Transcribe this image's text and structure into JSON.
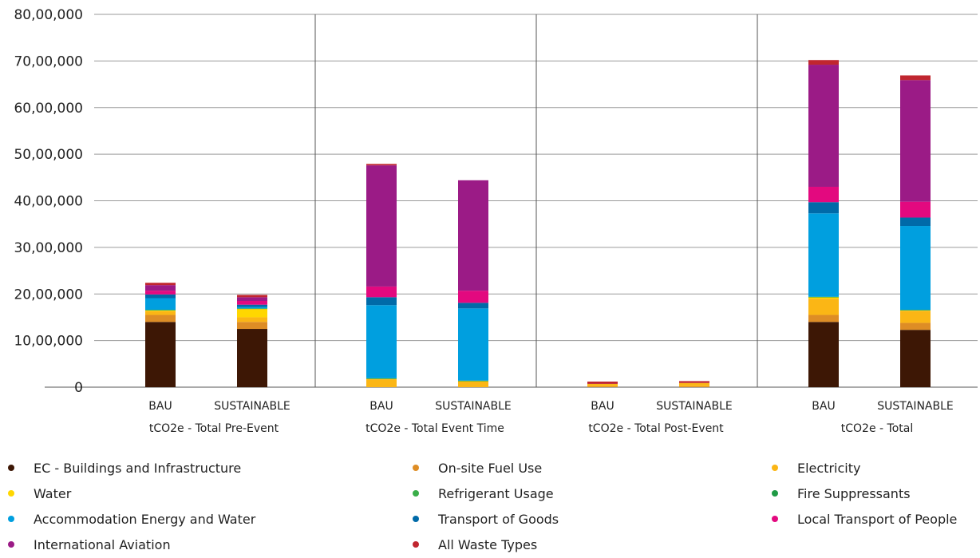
{
  "chart_data": {
    "type": "bar",
    "stacked": true,
    "ylim": [
      0,
      8000000
    ],
    "y_ticks": [
      0,
      1000000,
      2000000,
      3000000,
      4000000,
      5000000,
      6000000,
      7000000,
      8000000
    ],
    "y_tick_labels": [
      "0",
      "10,00,000",
      "20,00,000",
      "30,00,000",
      "40,00,000",
      "50,00,000",
      "60,00,000",
      "70,00,000",
      "80,00,000"
    ],
    "grid": true,
    "legend_position": "bottom",
    "groups": [
      {
        "label": "tCO2e - Total Pre-Event",
        "bars": [
          {
            "label": "BAU",
            "values": [
              1400000,
              150000,
              80000,
              20000,
              5000,
              5000,
              250000,
              80000,
              80000,
              120000,
              50000
            ]
          },
          {
            "label": "SUSTAINABLE",
            "values": [
              1250000,
              150000,
              100000,
              180000,
              5000,
              5000,
              30000,
              50000,
              80000,
              80000,
              50000
            ]
          }
        ]
      },
      {
        "label": "tCO2e - Total Event Time",
        "bars": [
          {
            "label": "BAU",
            "values": [
              0,
              0,
              170000,
              10000,
              5000,
              5000,
              1570000,
              170000,
              230000,
              2600000,
              30000
            ]
          },
          {
            "label": "SUSTAINABLE",
            "values": [
              0,
              0,
              120000,
              10000,
              5000,
              5000,
              1550000,
              120000,
              260000,
              2370000,
              0
            ]
          }
        ]
      },
      {
        "label": "tCO2e - Total Post-Event",
        "bars": [
          {
            "label": "BAU",
            "values": [
              0,
              20000,
              50000,
              0,
              0,
              0,
              0,
              0,
              0,
              0,
              50000
            ]
          },
          {
            "label": "SUSTAINABLE",
            "values": [
              0,
              20000,
              70000,
              0,
              0,
              0,
              0,
              0,
              0,
              0,
              40000
            ]
          }
        ]
      },
      {
        "label": "tCO2e - Total",
        "bars": [
          {
            "label": "BAU",
            "values": [
              1400000,
              150000,
              350000,
              30000,
              5000,
              5000,
              1790000,
              240000,
              330000,
              2620000,
              100000
            ]
          },
          {
            "label": "SUSTAINABLE",
            "values": [
              1230000,
              150000,
              260000,
              10000,
              5000,
              5000,
              1800000,
              180000,
              340000,
              2610000,
              100000
            ]
          }
        ]
      }
    ],
    "series": [
      {
        "name": "EC - Buildings and Infrastructure",
        "color": "#3d1705"
      },
      {
        "name": "On-site Fuel Use",
        "color": "#de8d25"
      },
      {
        "name": "Electricity",
        "color": "#fbb615"
      },
      {
        "name": "Water",
        "color": "#ffd700"
      },
      {
        "name": "Refrigerant Usage",
        "color": "#3aae49"
      },
      {
        "name": "Fire Suppressants",
        "color": "#1f9a45"
      },
      {
        "name": "Accommodation Energy and Water",
        "color": "#009fdf"
      },
      {
        "name": "Transport of Goods",
        "color": "#006aa8"
      },
      {
        "name": "Local Transport of People",
        "color": "#e3097f"
      },
      {
        "name": "International Aviation",
        "color": "#9b1b86"
      },
      {
        "name": "All Waste Types",
        "color": "#c0262f"
      }
    ]
  }
}
